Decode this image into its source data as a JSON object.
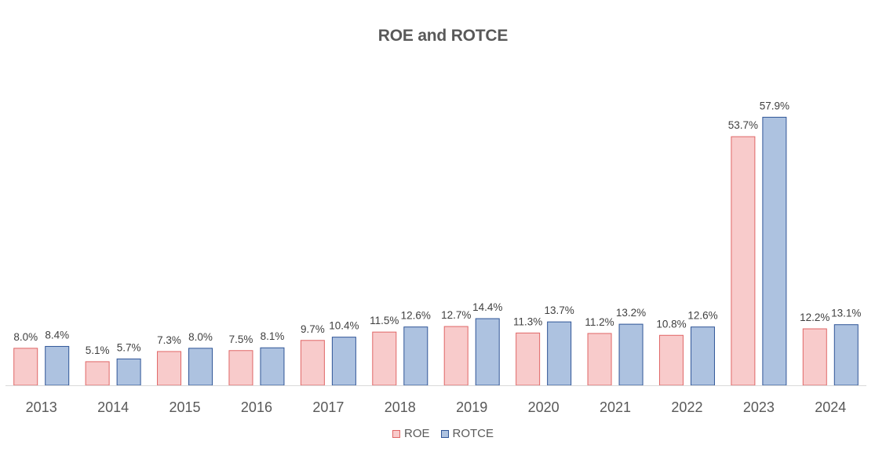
{
  "chart_data": {
    "type": "bar",
    "title": "ROE and ROTCE",
    "categories": [
      "2013",
      "2014",
      "2015",
      "2016",
      "2017",
      "2018",
      "2019",
      "2020",
      "2021",
      "2022",
      "2023",
      "2024"
    ],
    "series": [
      {
        "name": "ROE",
        "values": [
          8.0,
          5.1,
          7.3,
          7.5,
          9.7,
          11.5,
          12.7,
          11.3,
          11.2,
          10.8,
          53.7,
          12.2
        ],
        "labels": [
          "8.0%",
          "5.1%",
          "7.3%",
          "7.5%",
          "9.7%",
          "11.5%",
          "12.7%",
          "11.3%",
          "11.2%",
          "10.8%",
          "53.7%",
          "12.2%"
        ],
        "fill": "#f8cbcb",
        "stroke": "#e06666"
      },
      {
        "name": "ROTCE",
        "values": [
          8.4,
          5.7,
          8.0,
          8.1,
          10.4,
          12.6,
          14.4,
          13.7,
          13.2,
          12.6,
          57.9,
          13.1
        ],
        "labels": [
          "8.4%",
          "5.7%",
          "8.0%",
          "8.1%",
          "10.4%",
          "12.6%",
          "14.4%",
          "13.7%",
          "13.2%",
          "12.6%",
          "57.9%",
          "13.1%"
        ],
        "fill": "#adc2e0",
        "stroke": "#2f5597"
      }
    ],
    "ylim": [
      0,
      60
    ],
    "grid": false,
    "legend_position": "bottom",
    "axis_color": "#d9d9d9",
    "text_color": "#595959"
  }
}
